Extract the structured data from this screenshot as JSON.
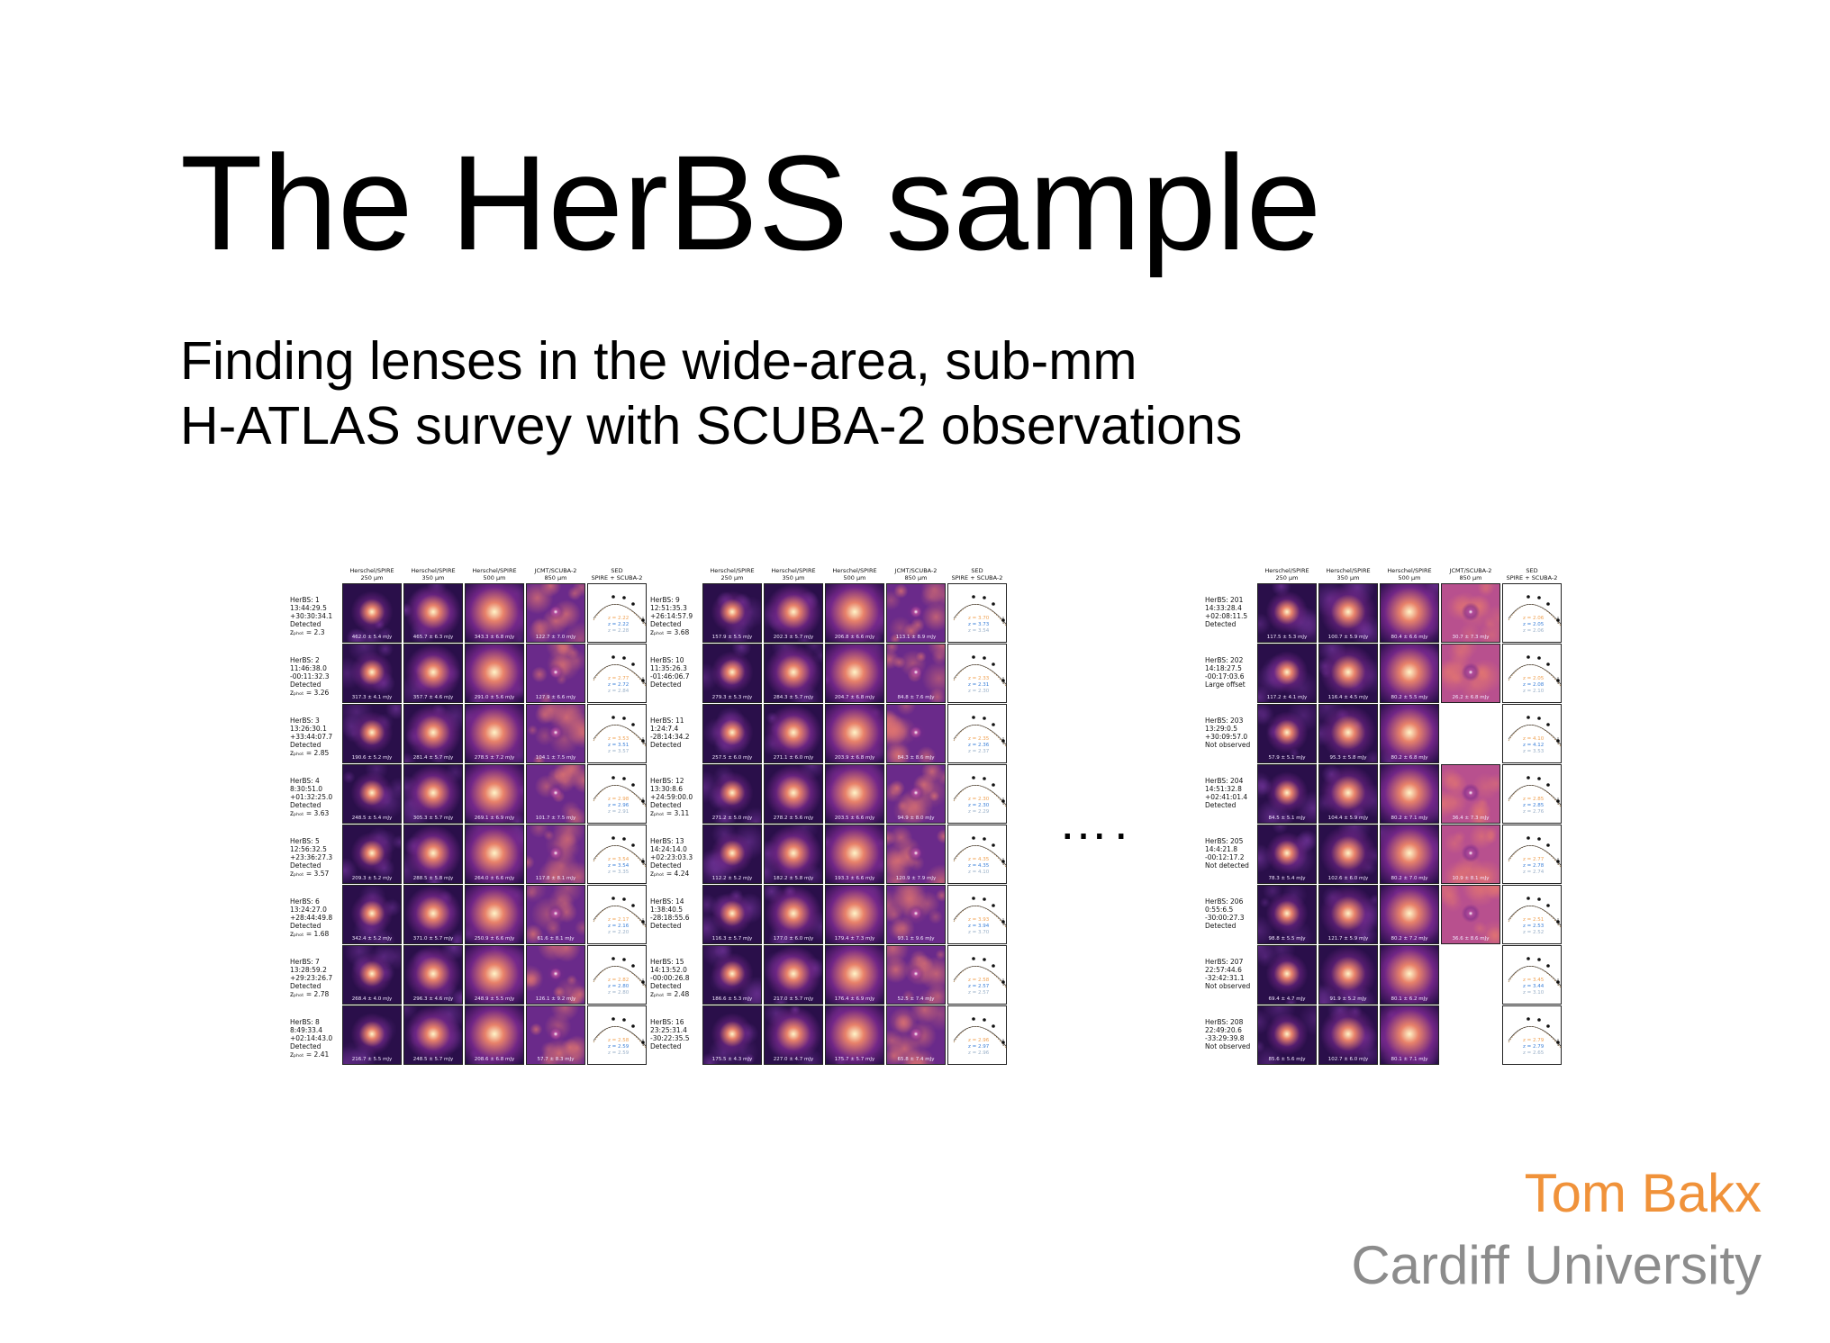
{
  "slide": {
    "title": "The HerBS sample",
    "subtitle_line1": "Finding lenses in the wide-area, sub-mm",
    "subtitle_line2": "H-ATLAS survey with SCUBA-2 observations",
    "ellipsis": "….",
    "author": "Tom Bakx",
    "affiliation": "Cardiff University",
    "colors": {
      "author": "#f0923a",
      "affiliation": "#8c8c8c",
      "zoneA": "#f0a050",
      "zoneB": "#3a7fd8"
    }
  },
  "panel_headers": [
    "Herschel/SPIRE\n250 μm",
    "Herschel/SPIRE\n350 μm",
    "Herschel/SPIRE\n500 μm",
    "JCMT/SCUBA-2\n850 μm",
    "SED\nSPIRE + SCUBA-2"
  ],
  "panels": [
    {
      "rows": [
        {
          "label": "HerBS: 1\n13:44:29.5\n+30:30:34.1\nDetected\nzₚₕₒₜ = 2.3",
          "flux": [
            "462.0 ± 5.4 mJy",
            "465.7 ± 6.3 mJy",
            "343.3 ± 6.8 mJy",
            "122.7 ± 7.0 mJy"
          ],
          "scuba": true,
          "z": [
            "2.22",
            "2.22",
            "2.28"
          ]
        },
        {
          "label": "HerBS: 2\n11:46:38.0\n-00:11:32.3\nDetected\nzₚₕₒₜ = 3.26",
          "flux": [
            "317.3 ± 4.1 mJy",
            "357.7 ± 4.6 mJy",
            "291.0 ± 5.6 mJy",
            "127.9 ± 6.6 mJy"
          ],
          "scuba": true,
          "z": [
            "2.77",
            "2.72",
            "2.84"
          ]
        },
        {
          "label": "HerBS: 3\n13:26:30.1\n+33:44:07.7\nDetected\nzₚₕₒₜ = 2.85",
          "flux": [
            "190.6 ± 5.2 mJy",
            "281.4 ± 5.7 mJy",
            "278.5 ± 7.2 mJy",
            "104.1 ± 7.5 mJy"
          ],
          "scuba": true,
          "z": [
            "3.53",
            "3.51",
            "3.57"
          ]
        },
        {
          "label": "HerBS: 4\n8:30:51.0\n+01:32:25.0\nDetected\nzₚₕₒₜ = 3.63",
          "flux": [
            "248.5 ± 5.4 mJy",
            "305.3 ± 5.7 mJy",
            "269.1 ± 6.9 mJy",
            "101.7 ± 7.5 mJy"
          ],
          "scuba": true,
          "z": [
            "2.98",
            "2.96",
            "2.91"
          ]
        },
        {
          "label": "HerBS: 5\n12:56:32.5\n+23:36:27.3\nDetected\nzₚₕₒₜ = 3.57",
          "flux": [
            "209.3 ± 5.2 mJy",
            "288.5 ± 5.8 mJy",
            "264.0 ± 6.6 mJy",
            "117.8 ± 8.1 mJy"
          ],
          "scuba": true,
          "z": [
            "3.54",
            "3.54",
            "3.35"
          ]
        },
        {
          "label": "HerBS: 6\n13:24:27.0\n+28:44:49.8\nDetected\nzₚₕₒₜ = 1.68",
          "flux": [
            "342.4 ± 5.2 mJy",
            "371.0 ± 5.7 mJy",
            "250.9 ± 6.6 mJy",
            "61.6 ± 8.1 mJy"
          ],
          "scuba": true,
          "z": [
            "2.17",
            "2.16",
            "2.20"
          ]
        },
        {
          "label": "HerBS: 7\n13:28:59.2\n+29:23:26.7\nDetected\nzₚₕₒₜ = 2.78",
          "flux": [
            "268.4 ± 4.0 mJy",
            "296.3 ± 4.6 mJy",
            "248.9 ± 5.5 mJy",
            "126.1 ± 9.2 mJy"
          ],
          "scuba": true,
          "z": [
            "2.82",
            "2.80",
            "2.80"
          ]
        },
        {
          "label": "HerBS: 8\n8:49:33.4\n+02:14:43.0\nDetected\nzₚₕₒₜ = 2.41",
          "flux": [
            "216.7 ± 5.5 mJy",
            "248.5 ± 5.7 mJy",
            "208.6 ± 6.8 mJy",
            "57.7 ± 8.3 mJy"
          ],
          "scuba": true,
          "z": [
            "2.58",
            "2.59",
            "2.59"
          ]
        }
      ]
    },
    {
      "rows": [
        {
          "label": "HerBS: 9\n12:51:35.3\n+26:14:57.9\nDetected\nzₚₕₒₜ = 3.68",
          "flux": [
            "157.9 ± 5.5 mJy",
            "202.3 ± 5.7 mJy",
            "206.8 ± 6.6 mJy",
            "113.1 ± 8.9 mJy"
          ],
          "scuba": true,
          "z": [
            "3.70",
            "3.73",
            "3.54"
          ]
        },
        {
          "label": "HerBS: 10\n11:35:26.3\n-01:46:06.7\nDetected",
          "flux": [
            "279.3 ± 5.3 mJy",
            "284.3 ± 5.7 mJy",
            "204.7 ± 6.8 mJy",
            "84.8 ± 7.6 mJy"
          ],
          "scuba": true,
          "z": [
            "2.33",
            "2.31",
            "2.30"
          ]
        },
        {
          "label": "HerBS: 11\n1:24:7.4\n-28:14:34.2\nDetected",
          "flux": [
            "257.5 ± 6.0 mJy",
            "271.1 ± 6.0 mJy",
            "203.9 ± 6.8 mJy",
            "84.3 ± 8.6 mJy"
          ],
          "scuba": true,
          "z": [
            "2.35",
            "2.36",
            "2.37"
          ]
        },
        {
          "label": "HerBS: 12\n13:30:8.6\n+24:59:00.0\nDetected\nzₚₕₒₜ = 3.11",
          "flux": [
            "271.2 ± 5.0 mJy",
            "278.2 ± 5.6 mJy",
            "203.5 ± 6.6 mJy",
            "94.9 ± 8.0 mJy"
          ],
          "scuba": true,
          "z": [
            "2.30",
            "2.30",
            "2.29"
          ]
        },
        {
          "label": "HerBS: 13\n14:24:14.0\n+02:23:03.3\nDetected\nzₚₕₒₜ = 4.24",
          "flux": [
            "112.2 ± 5.2 mJy",
            "182.2 ± 5.8 mJy",
            "193.3 ± 6.6 mJy",
            "120.9 ± 7.9 mJy"
          ],
          "scuba": true,
          "z": [
            "4.35",
            "4.35",
            "4.10"
          ]
        },
        {
          "label": "HerBS: 14\n1:38:40.5\n-28:18:55.6\nDetected",
          "flux": [
            "116.3 ± 5.7 mJy",
            "177.0 ± 6.0 mJy",
            "179.4 ± 7.3 mJy",
            "93.1 ± 9.6 mJy"
          ],
          "scuba": true,
          "z": [
            "3.93",
            "3.94",
            "3.70"
          ]
        },
        {
          "label": "HerBS: 15\n14:13:52.0\n-00:00:26.8\nDetected\nzₚₕₒₜ = 2.48",
          "flux": [
            "186.6 ± 5.3 mJy",
            "217.0 ± 5.7 mJy",
            "176.4 ± 6.9 mJy",
            "52.5 ± 7.4 mJy"
          ],
          "scuba": true,
          "z": [
            "2.58",
            "2.57",
            "2.57"
          ]
        },
        {
          "label": "HerBS: 16\n23:25:31.4\n-30:22:35.5\nDetected",
          "flux": [
            "175.5 ± 4.3 mJy",
            "227.0 ± 4.7 mJy",
            "175.7 ± 5.7 mJy",
            "65.8 ± 7.4 mJy"
          ],
          "scuba": true,
          "z": [
            "2.96",
            "2.97",
            "2.96"
          ]
        }
      ]
    },
    {
      "rows": [
        {
          "label": "HerBS: 201\n14:33:28.4\n+02:08:11.5\nDetected",
          "flux": [
            "117.5 ± 5.3 mJy",
            "100.7 ± 5.9 mJy",
            "80.4 ± 6.6 mJy",
            "30.7 ± 7.3 mJy"
          ],
          "scuba": true,
          "z": [
            "2.06",
            "2.05",
            "2.06"
          ]
        },
        {
          "label": "HerBS: 202\n14:18:27.5\n-00:17:03.6\nLarge offset",
          "flux": [
            "117.2 ± 4.1 mJy",
            "116.4 ± 4.5 mJy",
            "80.2 ± 5.5 mJy",
            "26.2 ± 6.8 mJy"
          ],
          "scuba": true,
          "z": [
            "2.05",
            "2.08",
            "2.10"
          ]
        },
        {
          "label": "HerBS: 203\n13:29:0.5\n+30:09:57.0\nNot observed",
          "flux": [
            "57.9 ± 5.1 mJy",
            "95.3 ± 5.8 mJy",
            "80.2 ± 6.8 mJy",
            ""
          ],
          "scuba": false,
          "z": [
            "4.10",
            "4.12",
            "3.53"
          ]
        },
        {
          "label": "HerBS: 204\n14:51:32.8\n+02:41:01.4\nDetected",
          "flux": [
            "84.5 ± 5.1 mJy",
            "104.4 ± 5.9 mJy",
            "80.2 ± 7.1 mJy",
            "36.4 ± 7.3 mJy"
          ],
          "scuba": true,
          "z": [
            "2.85",
            "2.85",
            "2.76"
          ]
        },
        {
          "label": "HerBS: 205\n14:4:21.8\n-00:12:17.2\nNot detected",
          "flux": [
            "78.3 ± 5.4 mJy",
            "102.6 ± 6.0 mJy",
            "80.2 ± 7.0 mJy",
            "10.9 ± 8.1 mJy"
          ],
          "scuba": true,
          "z": [
            "2.77",
            "2.78",
            "2.74"
          ]
        },
        {
          "label": "HerBS: 206\n0:55:6.5\n-30:00:27.3\nDetected",
          "flux": [
            "98.8 ± 5.5 mJy",
            "121.7 ± 5.9 mJy",
            "80.2 ± 7.2 mJy",
            "36.6 ± 8.6 mJy"
          ],
          "scuba": true,
          "z": [
            "2.51",
            "2.53",
            "2.52"
          ]
        },
        {
          "label": "HerBS: 207\n22:57:44.6\n-32:42:31.1\nNot observed",
          "flux": [
            "69.4 ± 4.7 mJy",
            "91.9 ± 5.2 mJy",
            "80.1 ± 6.2 mJy",
            ""
          ],
          "scuba": false,
          "z": [
            "3.45",
            "3.44",
            "3.10"
          ]
        },
        {
          "label": "HerBS: 208\n22:49:20.6\n-33:29:39.8\nNot observed",
          "flux": [
            "85.6 ± 5.6 mJy",
            "102.7 ± 6.0 mJy",
            "80.1 ± 7.1 mJy",
            ""
          ],
          "scuba": false,
          "z": [
            "2.79",
            "2.79",
            "2.65"
          ]
        }
      ]
    }
  ]
}
